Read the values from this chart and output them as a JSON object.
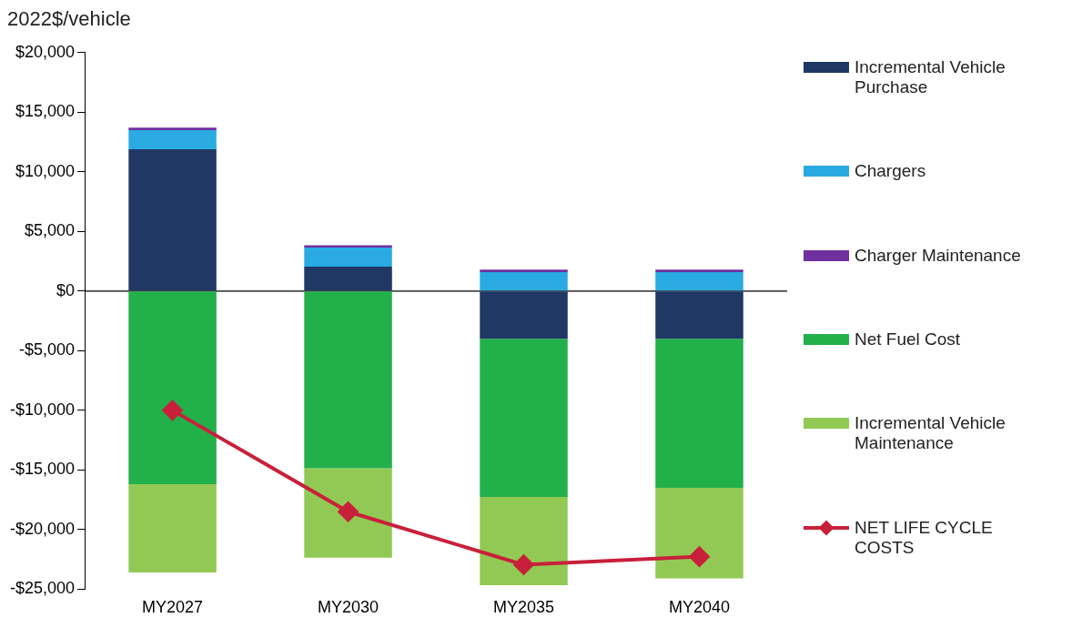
{
  "chart_data": {
    "type": "bar",
    "ylabel": "2022$/vehicle",
    "categories": [
      "MY2027",
      "MY2030",
      "MY2035",
      "MY2040"
    ],
    "stacked": true,
    "ylim": [
      -25000,
      20000
    ],
    "yticks": [
      {
        "value": -25000,
        "label": "-$25,000"
      },
      {
        "value": -20000,
        "label": "-$20,000"
      },
      {
        "value": -15000,
        "label": "-$15,000"
      },
      {
        "value": -10000,
        "label": "-$10,000"
      },
      {
        "value": -5000,
        "label": "-$5,000"
      },
      {
        "value": 0,
        "label": "$0"
      },
      {
        "value": 5000,
        "label": "$5,000"
      },
      {
        "value": 10000,
        "label": "$10,000"
      },
      {
        "value": 15000,
        "label": "$15,000"
      },
      {
        "value": 20000,
        "label": "$20,000"
      }
    ],
    "grid": false,
    "legend": "right",
    "ref_lines": [
      {
        "axis": "y",
        "value": 0,
        "color": "#000000"
      }
    ],
    "series": [
      {
        "name": "Incremental Vehicle Purchase",
        "color": "#1f3864",
        "values": [
          11900,
          2050,
          -4000,
          -4000
        ]
      },
      {
        "name": "Chargers",
        "color": "#29abe2",
        "values": [
          1600,
          1600,
          1600,
          1600
        ]
      },
      {
        "name": "Charger Maintenance",
        "color": "#7030a0",
        "values": [
          200,
          200,
          200,
          200
        ]
      },
      {
        "name": "Net Fuel Cost",
        "color": "#22b04b",
        "values": [
          -16200,
          -14850,
          -13270,
          -12500
        ]
      },
      {
        "name": "Incremental Vehicle Maintenance",
        "color": "#92c955",
        "values": [
          -7400,
          -7500,
          -7400,
          -7600
        ]
      },
      {
        "name": "NET LIFE CYCLE COSTS",
        "type": "line",
        "color": "#c8203a",
        "marker": "diamond",
        "line_style": "solid",
        "values": [
          -10000,
          -18500,
          -22950,
          -22270
        ]
      }
    ]
  }
}
